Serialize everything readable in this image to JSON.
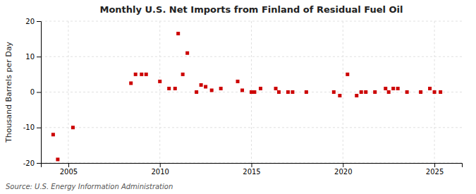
{
  "chart_data": {
    "type": "scatter",
    "title": "Monthly U.S. Net Imports from Finland of Residual Fuel Oil",
    "ylabel": "Thousand Barrels per Day",
    "source": "Source: U.S. Energy Information Administration",
    "color": "#cc0000",
    "marker": "square",
    "grid": true,
    "xlim": [
      2003.5,
      2026.5
    ],
    "xticks": [
      2005,
      2010,
      2015,
      2020,
      2025
    ],
    "ylim": [
      -20,
      20
    ],
    "yticks": [
      -20,
      -10,
      0,
      10,
      20
    ],
    "x": [
      2004.17,
      2004.42,
      2005.25,
      2008.42,
      2008.67,
      2009.0,
      2009.25,
      2010.0,
      2010.5,
      2010.83,
      2011.0,
      2011.25,
      2011.5,
      2012.0,
      2012.25,
      2012.5,
      2012.83,
      2013.33,
      2014.25,
      2014.5,
      2015.0,
      2015.17,
      2015.5,
      2016.33,
      2016.5,
      2017.0,
      2017.25,
      2018.0,
      2019.5,
      2019.83,
      2020.25,
      2020.75,
      2021.0,
      2021.25,
      2021.75,
      2022.33,
      2022.5,
      2022.75,
      2023.0,
      2023.5,
      2024.25,
      2024.75,
      2025.0,
      2025.33
    ],
    "values": [
      -12.0,
      -19.0,
      -10.0,
      2.5,
      5.0,
      5.0,
      5.0,
      3.0,
      1.0,
      1.0,
      16.5,
      5.0,
      11.0,
      0.0,
      2.0,
      1.5,
      0.5,
      1.0,
      3.0,
      0.5,
      0.0,
      0.0,
      1.0,
      1.0,
      0.0,
      0.0,
      0.0,
      0.0,
      0.0,
      -1.0,
      5.0,
      -1.0,
      0.0,
      0.0,
      0.0,
      1.0,
      0.0,
      1.0,
      1.0,
      0.0,
      0.0,
      1.0,
      0.0,
      0.0
    ]
  }
}
